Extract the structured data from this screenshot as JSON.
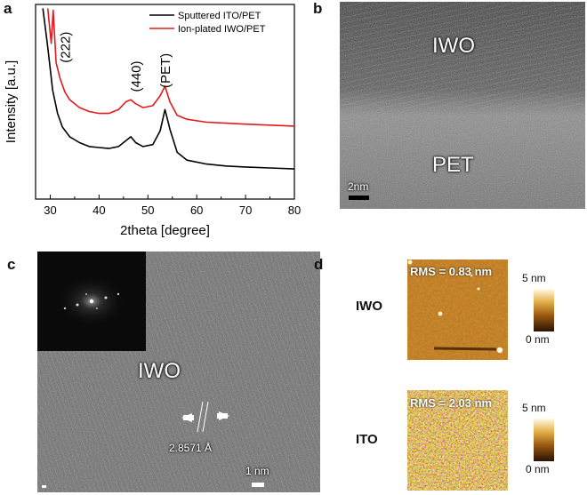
{
  "panel_a": {
    "letter": "a",
    "chart_data": {
      "type": "line",
      "xlabel": "2theta [degree]",
      "ylabel": "Intensity [a.u.]",
      "xlim": [
        27,
        80
      ],
      "x_ticks": [
        30,
        40,
        50,
        60,
        70,
        80
      ],
      "y_ticks_shown": false,
      "legend": "top-right",
      "annotations": [
        "(222)",
        "(440)",
        "(PET)"
      ],
      "series": [
        {
          "name": "Sputtered ITO/PET",
          "color": "#000000",
          "x": [
            28.5,
            29.5,
            30.5,
            31.5,
            32.5,
            34,
            36,
            38,
            40,
            42,
            44,
            45.5,
            46.5,
            47.5,
            49,
            51,
            52.5,
            53.5,
            54.5,
            56,
            58,
            62,
            66,
            70,
            75,
            80
          ],
          "y": [
            0.98,
            0.78,
            0.56,
            0.44,
            0.37,
            0.32,
            0.29,
            0.27,
            0.265,
            0.26,
            0.27,
            0.3,
            0.32,
            0.29,
            0.27,
            0.28,
            0.35,
            0.46,
            0.36,
            0.24,
            0.2,
            0.18,
            0.17,
            0.165,
            0.16,
            0.155
          ]
        },
        {
          "name": "Ion-plated IWO/PET",
          "color": "#e31a1c",
          "x": [
            29.5,
            30.2,
            30.6,
            31.2,
            32,
            33,
            34,
            36,
            38,
            40,
            42,
            44,
            45.5,
            46.5,
            47.5,
            49,
            51,
            52.5,
            53.5,
            54.5,
            56,
            58,
            62,
            66,
            70,
            75,
            80
          ],
          "y": [
            0.98,
            0.8,
            0.97,
            0.7,
            0.62,
            0.55,
            0.51,
            0.47,
            0.45,
            0.44,
            0.44,
            0.46,
            0.5,
            0.51,
            0.49,
            0.47,
            0.48,
            0.53,
            0.58,
            0.5,
            0.43,
            0.41,
            0.395,
            0.39,
            0.385,
            0.38,
            0.375
          ]
        }
      ]
    }
  },
  "panel_b": {
    "letter": "b",
    "film_label": "IWO",
    "substrate_label": "PET",
    "scale": "2nm"
  },
  "panel_c": {
    "letter": "c",
    "label": "IWO",
    "d_spacing": "2.8571 Å",
    "scale": "1 nm"
  },
  "panel_d": {
    "letter": "d",
    "rows": [
      {
        "label": "IWO",
        "rms": "RMS = 0.83 nm",
        "scale_max": "5 nm",
        "scale_min": "0 nm"
      },
      {
        "label": "ITO",
        "rms": "RMS = 2.03 nm",
        "scale_max": "5 nm",
        "scale_min": "0 nm"
      }
    ]
  }
}
